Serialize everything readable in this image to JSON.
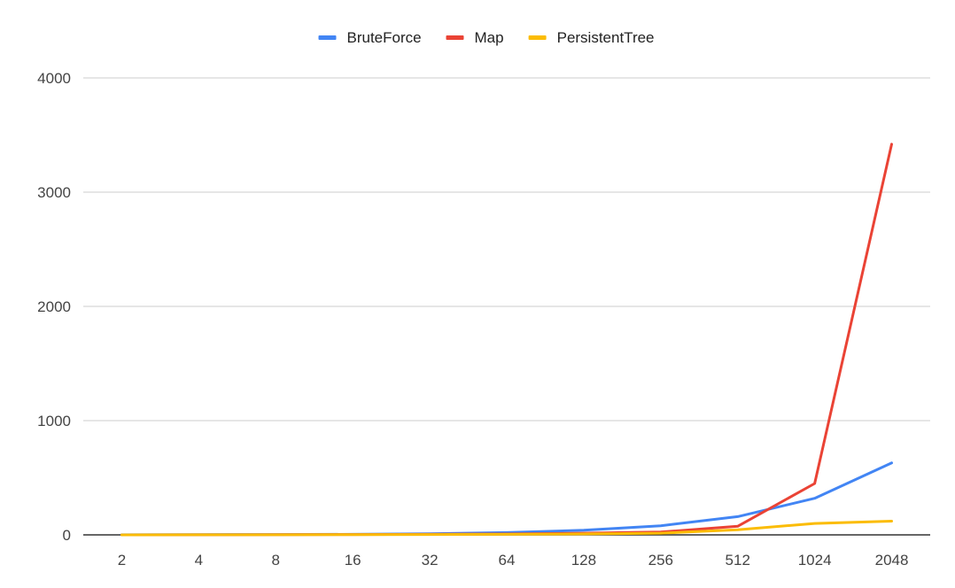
{
  "chart_data": {
    "type": "line",
    "title": "",
    "xlabel": "",
    "ylabel": "",
    "categories": [
      "2",
      "4",
      "8",
      "16",
      "32",
      "64",
      "128",
      "256",
      "512",
      "1024",
      "2048"
    ],
    "ylim": [
      0,
      4000
    ],
    "yticks": [
      "0",
      "1000",
      "2000",
      "3000",
      "4000"
    ],
    "grid": true,
    "legend_position": "top-center",
    "series": [
      {
        "name": "BruteForce",
        "color": "#4285f4",
        "values": [
          1,
          2,
          3,
          5,
          10,
          20,
          40,
          80,
          160,
          320,
          630
        ]
      },
      {
        "name": "Map",
        "color": "#ea4335",
        "values": [
          0,
          1,
          2,
          3,
          5,
          8,
          15,
          25,
          75,
          450,
          3420
        ]
      },
      {
        "name": "PersistentTree",
        "color": "#fbbc04",
        "values": [
          0,
          1,
          1,
          2,
          3,
          5,
          8,
          15,
          45,
          100,
          120
        ]
      }
    ]
  }
}
